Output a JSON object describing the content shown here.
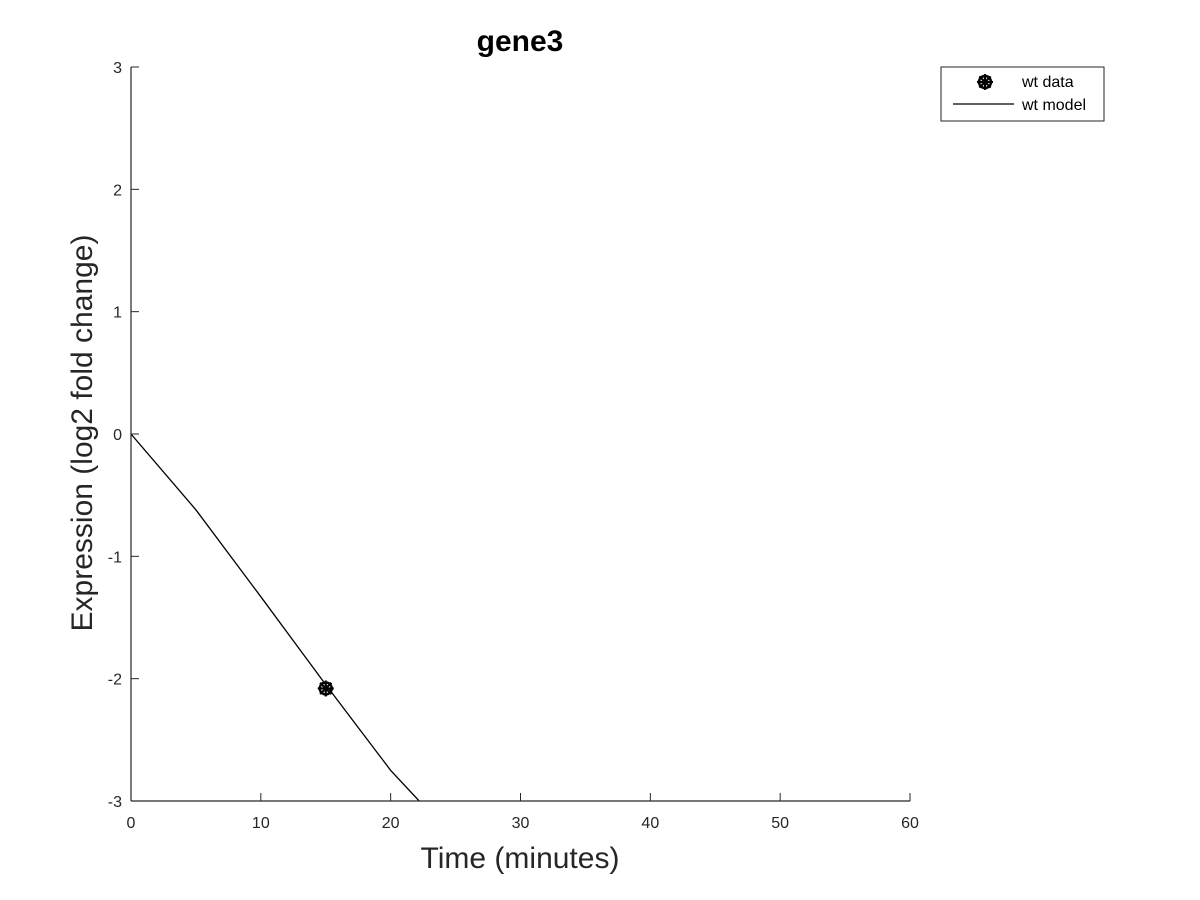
{
  "chart_data": {
    "type": "line",
    "title": "gene3",
    "xlabel": "Time (minutes)",
    "ylabel": "Expression (log2 fold change)",
    "xlim": [
      0,
      60
    ],
    "ylim": [
      -3,
      3
    ],
    "xticks": [
      0,
      10,
      20,
      30,
      40,
      50,
      60
    ],
    "yticks": [
      -3,
      -2,
      -1,
      0,
      1,
      2,
      3
    ],
    "grid": false,
    "legend_position": "top-right",
    "series": [
      {
        "name": "wt data",
        "kind": "scatter",
        "marker": "asterisk-circle",
        "color": "#000000",
        "points": [
          {
            "x": 15,
            "y": -2.08
          }
        ]
      },
      {
        "name": "wt model",
        "kind": "line",
        "color": "#000000",
        "points": [
          {
            "x": 0,
            "y": 0
          },
          {
            "x": 5,
            "y": -0.62
          },
          {
            "x": 10,
            "y": -1.33
          },
          {
            "x": 15,
            "y": -2.05
          },
          {
            "x": 20,
            "y": -2.75
          },
          {
            "x": 22.2,
            "y": -3.0
          }
        ]
      }
    ]
  }
}
